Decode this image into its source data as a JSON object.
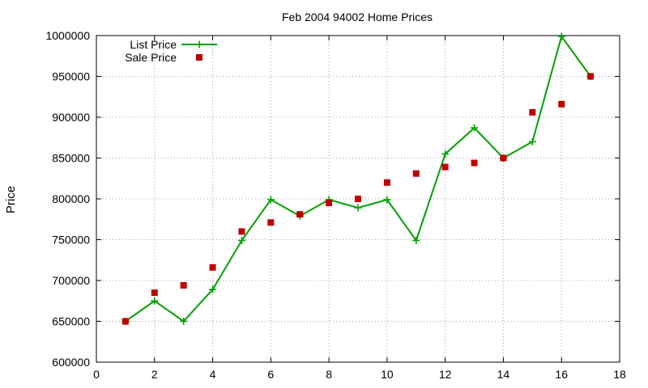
{
  "chart_data": {
    "type": "line",
    "title": "Feb 2004 94002 Home Prices",
    "xlabel": "",
    "ylabel": "Price",
    "xlim": [
      0,
      18
    ],
    "ylim": [
      600000,
      1000000
    ],
    "x_ticks": [
      0,
      2,
      4,
      6,
      8,
      10,
      12,
      14,
      16,
      18
    ],
    "y_ticks": [
      600000,
      650000,
      700000,
      750000,
      800000,
      850000,
      900000,
      950000,
      1000000
    ],
    "grid": true,
    "legend_position": "top-left",
    "series": [
      {
        "name": "List Price",
        "style": "line-with-plus-markers",
        "color": "#00a000",
        "x": [
          1,
          2,
          3,
          4,
          5,
          6,
          7,
          8,
          9,
          10,
          11,
          12,
          13,
          14,
          15,
          16,
          17
        ],
        "values": [
          650000,
          675000,
          650000,
          689000,
          749000,
          799000,
          779000,
          799000,
          789000,
          799000,
          749000,
          855000,
          887000,
          850000,
          870000,
          999000,
          950000
        ]
      },
      {
        "name": "Sale Price",
        "style": "square-markers",
        "color": "#c00000",
        "x": [
          1,
          2,
          3,
          4,
          5,
          6,
          7,
          8,
          9,
          10,
          11,
          12,
          13,
          14,
          15,
          16,
          17
        ],
        "values": [
          650000,
          685000,
          694000,
          716000,
          760000,
          771000,
          781000,
          795000,
          800000,
          820000,
          831000,
          839000,
          844000,
          850000,
          906000,
          916000,
          950000
        ]
      }
    ]
  }
}
